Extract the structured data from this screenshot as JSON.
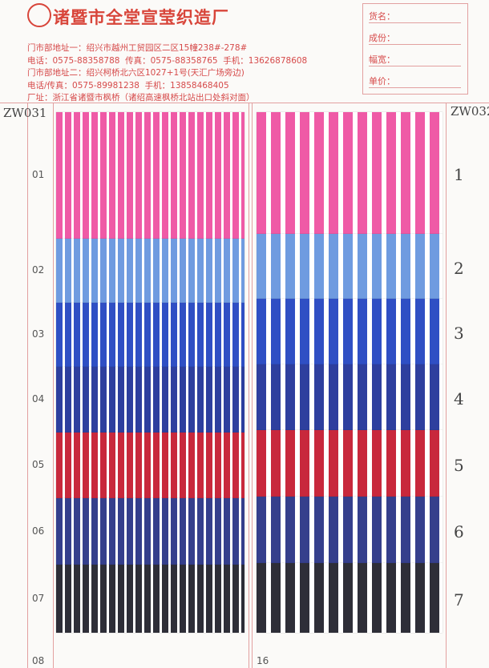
{
  "header": {
    "company": "诸暨市全堂宣莹织造厂",
    "addresses": [
      "门市部地址一：绍兴市越州工贸园区二区15幢238#-278#",
      "电话：0575-88358788  传真：0575-88358765  手机：13626878608",
      "门市部地址二：绍兴柯桥北六区1027+1号(天汇广场旁边)",
      "电话/传真：0575-89981238  手机：13858468405",
      "厂址：浙江省诸暨市枫桥（诸绍高速枫桥北站出口处斜对面）"
    ]
  },
  "spec_labels": [
    "货名：",
    "成份：",
    "幅宽：",
    "单价："
  ],
  "codes": [
    "ZW031",
    "ZW032"
  ],
  "rows": {
    "left": [
      "01",
      "02",
      "03",
      "04",
      "05",
      "06",
      "07",
      "08"
    ],
    "right": [
      "16"
    ]
  },
  "swatch_numbers": [
    "1",
    "2",
    "3",
    "4",
    "5",
    "6",
    "7"
  ]
}
